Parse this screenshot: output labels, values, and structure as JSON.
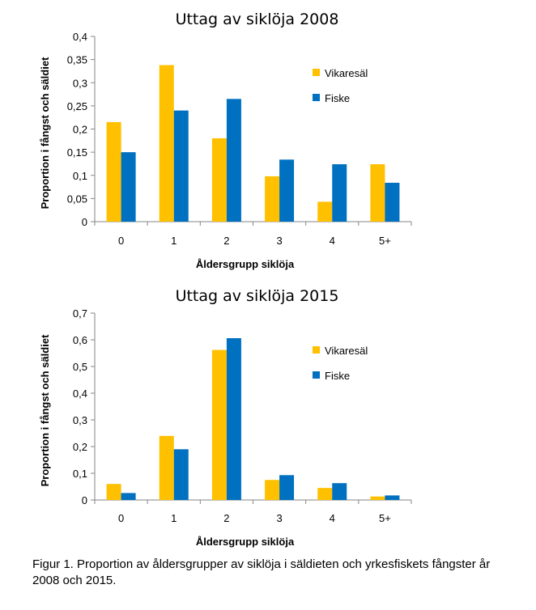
{
  "chart_data": [
    {
      "type": "bar",
      "title": "Uttag av siklöja 2008",
      "xlabel": "Åldersgrupp siklöja",
      "ylabel": "Proportion i fångst och säldiet",
      "categories": [
        "0",
        "1",
        "2",
        "3",
        "4",
        "5+"
      ],
      "ylim": [
        0,
        0.4
      ],
      "yticks": [
        0,
        0.05,
        0.1,
        0.15,
        0.2,
        0.25,
        0.3,
        0.35,
        0.4
      ],
      "ytick_labels": [
        "0",
        "0,05",
        "0,1",
        "0,15",
        "0,2",
        "0,25",
        "0,3",
        "0,35",
        "0,4"
      ],
      "grid": false,
      "legend": "right",
      "series": [
        {
          "name": "Vikaresäl",
          "color": "#FFC000",
          "values": [
            0.215,
            0.338,
            0.18,
            0.098,
            0.043,
            0.124
          ]
        },
        {
          "name": "Fiske",
          "color": "#0070C0",
          "values": [
            0.15,
            0.24,
            0.265,
            0.134,
            0.124,
            0.084
          ]
        }
      ]
    },
    {
      "type": "bar",
      "title": "Uttag av siklöja 2015",
      "xlabel": "Åldersgrupp siklöja",
      "ylabel": "Proportion i fångst och säldiet",
      "categories": [
        "0",
        "1",
        "2",
        "3",
        "4",
        "5+"
      ],
      "ylim": [
        0,
        0.7
      ],
      "yticks": [
        0,
        0.1,
        0.2,
        0.3,
        0.4,
        0.5,
        0.6,
        0.7
      ],
      "ytick_labels": [
        "0",
        "0,1",
        "0,2",
        "0,3",
        "0,4",
        "0,5",
        "0,6",
        "0,7"
      ],
      "grid": false,
      "legend": "right",
      "series": [
        {
          "name": "Vikaresäl",
          "color": "#FFC000",
          "values": [
            0.06,
            0.24,
            0.562,
            0.075,
            0.045,
            0.013
          ]
        },
        {
          "name": "Fiske",
          "color": "#0070C0",
          "values": [
            0.026,
            0.19,
            0.606,
            0.093,
            0.063,
            0.017
          ]
        }
      ]
    }
  ],
  "caption": "Figur 1. Proportion av åldersgrupper av siklöja i säldieten och yrkesfiskets fångster år 2008 och 2015."
}
